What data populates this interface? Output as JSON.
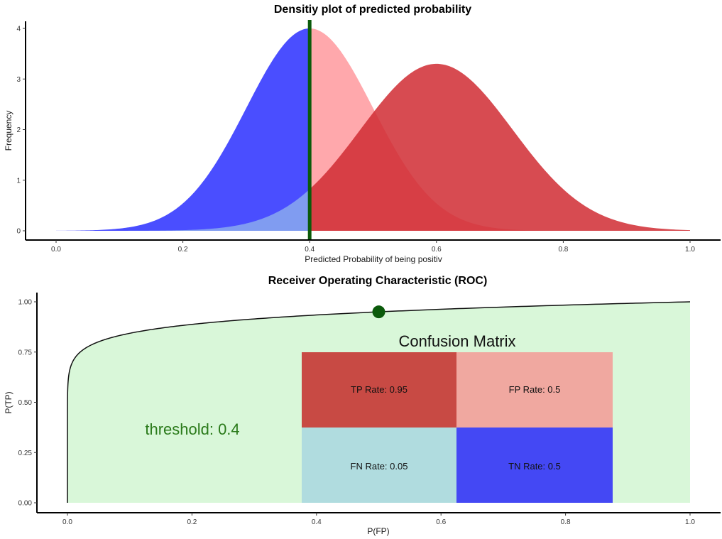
{
  "colors": {
    "negative_left": "#4a4eff",
    "negative_right": "#ffa8ac",
    "positive_left": "#8aaaee",
    "positive_right": "#d02c32",
    "threshold_line": "#0b5a0b",
    "roc_fill": "#d9f7d9",
    "roc_line": "#111111",
    "threshold_text": "#2a7a1a",
    "cm_tp": "#c84a44",
    "cm_fp": "#f0a8a0",
    "cm_fn": "#b0dcdf",
    "cm_tn": "#4448f4"
  },
  "chart_data": [
    {
      "type": "area",
      "title": "Densitiy plot of predicted probability",
      "xlabel": "Predicted Probability of being positiv",
      "ylabel": "Frequency",
      "xlim": [
        0,
        1
      ],
      "ylim": [
        0,
        4
      ],
      "x_ticks": [
        "0.0",
        "0.2",
        "0.4",
        "0.6",
        "0.8",
        "1.0"
      ],
      "y_ticks": [
        "0",
        "1",
        "2",
        "3",
        "4"
      ],
      "threshold": 0.4,
      "series": [
        {
          "mean": 0.4,
          "sd": 0.1,
          "peak": 4.0,
          "left_color": "negative_left",
          "right_color": "negative_right"
        },
        {
          "mean": 0.6,
          "sd": 0.12,
          "peak": 3.3,
          "left_color": "positive_left",
          "right_color": "positive_right"
        }
      ]
    },
    {
      "type": "line",
      "title": "Receiver Operating Characteristic (ROC)",
      "xlabel": "P(FP)",
      "ylabel": "P(TP)",
      "xlim": [
        0,
        1
      ],
      "ylim": [
        0,
        1
      ],
      "x_ticks": [
        "0.0",
        "0.2",
        "0.4",
        "0.6",
        "0.8",
        "1.0"
      ],
      "y_ticks": [
        "0.00",
        "0.25",
        "0.50",
        "0.75",
        "1.00"
      ],
      "operating_point": {
        "x": 0.5,
        "y": 0.95
      },
      "threshold_text": "threshold: 0.4",
      "confusion_matrix": {
        "title": "Confusion Matrix",
        "tp": "TP Rate: 0.95",
        "fp": "FP Rate: 0.5",
        "fn": "FN Rate: 0.05",
        "tn": "TN Rate: 0.5"
      }
    }
  ]
}
